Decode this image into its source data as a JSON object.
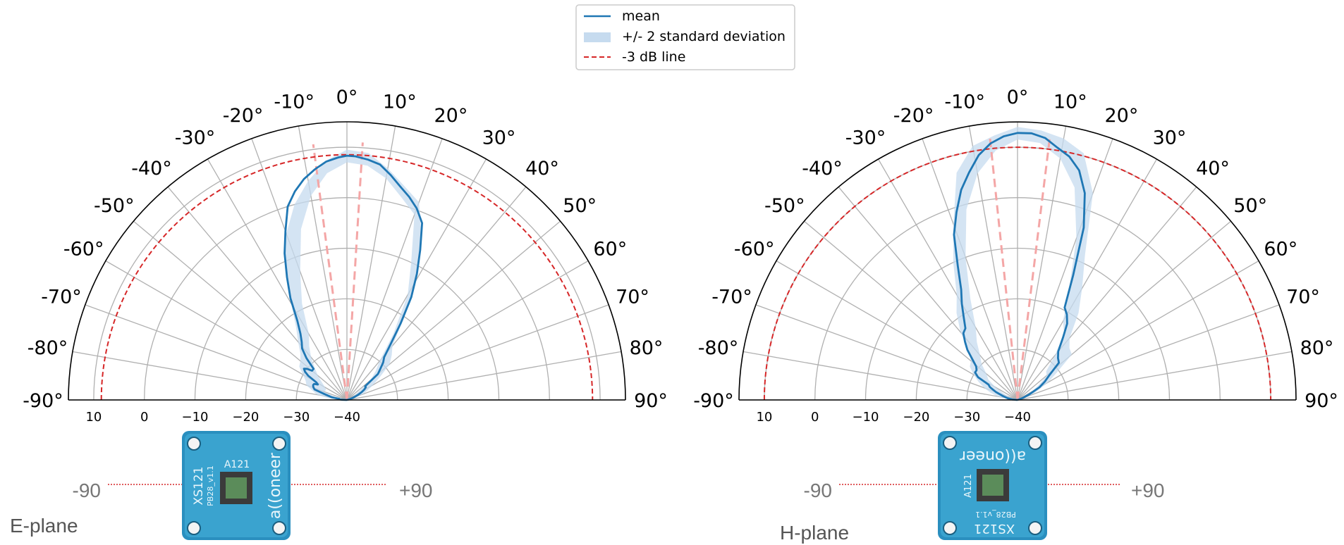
{
  "legend": {
    "items": [
      {
        "label": "mean",
        "kind": "line",
        "color": "#1f77b4"
      },
      {
        "label": "+/- 2 standard deviation",
        "kind": "band",
        "color": "#c6dbef"
      },
      {
        "label": "-3 dB line",
        "kind": "dashed",
        "color": "#d62728"
      }
    ]
  },
  "chart_data": [
    {
      "type": "line",
      "plane_label": "E-plane",
      "angle_range_deg": [
        -90,
        90
      ],
      "angle_ticks_deg": [
        -90,
        -80,
        -70,
        -60,
        -50,
        -40,
        -30,
        -20,
        -10,
        0,
        10,
        20,
        30,
        40,
        50,
        60,
        70,
        80,
        90
      ],
      "angle_tick_labels": [
        "-90°",
        "-80°",
        "-70°",
        "-60°",
        "-50°",
        "-40°",
        "-30°",
        "-20°",
        "-10°",
        "0°",
        "10°",
        "20°",
        "30°",
        "40°",
        "50°",
        "60°",
        "70°",
        "80°",
        "90°"
      ],
      "r_range": [
        -40,
        15
      ],
      "r_ticks": [
        10,
        0,
        -10,
        -20,
        -30,
        -40
      ],
      "r_tick_labels": [
        "10",
        "0",
        "−10",
        "−20",
        "−30",
        "−40"
      ],
      "minus3db_level": 8.5,
      "beam_lines_deg": [
        -7.5,
        3.5
      ],
      "series": [
        {
          "name": "mean",
          "angle": [
            -90,
            -88,
            -85,
            -82,
            -80,
            -75,
            -72,
            -70,
            -68,
            -66,
            -64,
            -62,
            -60,
            -58,
            -56,
            -54,
            -52,
            -50,
            -47,
            -44,
            -41,
            -38,
            -35,
            -32,
            -29,
            -26,
            -23,
            -20,
            -17,
            -14,
            -11,
            -8,
            -5,
            -2,
            0,
            2,
            5,
            8,
            11,
            14,
            17,
            20,
            23,
            26,
            29,
            32,
            35,
            38,
            41,
            44,
            47,
            50,
            53,
            56,
            59,
            62,
            65,
            68,
            71,
            74,
            77,
            80,
            83,
            86,
            90
          ],
          "r": [
            -40,
            -39,
            -38.5,
            -38.5,
            -37,
            -35.3,
            -33.3,
            -33,
            -32.8,
            -32.7,
            -32.8,
            -33.5,
            -33,
            -31,
            -30,
            -29.5,
            -30,
            -31,
            -31,
            -28.5,
            -26.5,
            -25.5,
            -24,
            -21.5,
            -17,
            -13,
            -8.5,
            -4.5,
            0,
            2.5,
            4.5,
            6,
            7.3,
            8,
            8.3,
            8.2,
            7.7,
            7,
            5.3,
            3.5,
            2,
            0.3,
            -2,
            -7,
            -11.5,
            -16,
            -21.5,
            -26,
            -28.8,
            -29.7,
            -31,
            -32,
            -35.5,
            -35.5,
            -36,
            -36.7,
            -37.5,
            -38.3,
            -39,
            -39.5,
            -40,
            -40,
            -40,
            -40,
            -40
          ]
        },
        {
          "name": "+/- 2 standard deviation",
          "angle": [
            -90,
            -85,
            -80,
            -75,
            -70,
            -65,
            -60,
            -55,
            -50,
            -45,
            -40,
            -35,
            -30,
            -25,
            -20,
            -15,
            -10,
            -5,
            0,
            5,
            10,
            15,
            20,
            25,
            30,
            35,
            40,
            45,
            50,
            55,
            60,
            65,
            70,
            75,
            80,
            85,
            90
          ],
          "upper": [
            -40,
            -36.5,
            -34,
            -33,
            -31.5,
            -31,
            -30,
            -28.5,
            -28,
            -27,
            -25,
            -22.5,
            -18,
            -11,
            -5,
            0,
            4,
            7.5,
            9.5,
            9,
            6.5,
            3.8,
            1.6,
            -5,
            -12.5,
            -20.5,
            -26,
            -27.5,
            -29,
            -32,
            -34,
            -35.5,
            -36.5,
            -38.5,
            -40,
            -40,
            -40
          ],
          "lower": [
            -40,
            -40,
            -39,
            -37.5,
            -35,
            -35.5,
            -35,
            -34,
            -32.5,
            -31,
            -29,
            -27,
            -25,
            -19,
            -13,
            -5,
            1,
            5,
            7,
            6.5,
            4.5,
            1.5,
            -1,
            -10,
            -16,
            -24,
            -30,
            -32,
            -34,
            -37.5,
            -38.5,
            -39,
            -40,
            -40,
            -40,
            -40,
            -40
          ]
        }
      ]
    },
    {
      "type": "line",
      "plane_label": "H-plane",
      "angle_range_deg": [
        -90,
        90
      ],
      "angle_ticks_deg": [
        -90,
        -80,
        -70,
        -60,
        -50,
        -40,
        -30,
        -20,
        -10,
        0,
        10,
        20,
        30,
        40,
        50,
        60,
        70,
        80,
        90
      ],
      "angle_tick_labels": [
        "-90°",
        "-80°",
        "-70°",
        "-60°",
        "-50°",
        "-40°",
        "-30°",
        "-20°",
        "-10°",
        "0°",
        "10°",
        "20°",
        "30°",
        "40°",
        "50°",
        "60°",
        "70°",
        "80°",
        "90°"
      ],
      "r_range": [
        -40,
        15
      ],
      "r_ticks": [
        10,
        0,
        -10,
        -20,
        -30,
        -40
      ],
      "r_tick_labels": [
        "10",
        "0",
        "−10",
        "−20",
        "−30",
        "−40"
      ],
      "minus3db_level": 10,
      "beam_lines_deg": [
        -6,
        7
      ],
      "series": [
        {
          "name": "mean",
          "angle": [
            -90,
            -85,
            -80,
            -75,
            -70,
            -65,
            -62,
            -60,
            -57,
            -54,
            -51,
            -48,
            -45,
            -42,
            -39,
            -36,
            -33,
            -30,
            -27,
            -24,
            -21,
            -18,
            -15,
            -12,
            -9,
            -6,
            -3,
            0,
            3,
            6,
            9,
            12,
            15,
            18,
            21,
            24,
            27,
            30,
            33,
            36,
            40,
            44,
            48,
            52,
            56,
            60,
            65,
            70,
            75,
            80,
            85,
            90
          ],
          "r": [
            -40,
            -39,
            -38,
            -37,
            -35.5,
            -34,
            -33.5,
            -31,
            -30,
            -30,
            -29.5,
            -28,
            -26,
            -24.5,
            -23,
            -22.5,
            -20.5,
            -18,
            -15.5,
            -11,
            -5,
            -1,
            3,
            6,
            9,
            11,
            12.2,
            12.8,
            12.8,
            12.1,
            10.5,
            9.2,
            7,
            3,
            -3.5,
            -13,
            -19.5,
            -20.5,
            -22,
            -24.7,
            -27.5,
            -28.5,
            -29,
            -32,
            -33.5,
            -35,
            -37.5,
            -39,
            -40,
            -40,
            -40,
            -40
          ]
        },
        {
          "name": "+/- 2 standard deviation",
          "angle": [
            -90,
            -85,
            -80,
            -75,
            -70,
            -65,
            -60,
            -55,
            -50,
            -45,
            -40,
            -35,
            -30,
            -25,
            -20,
            -15,
            -10,
            -5,
            0,
            5,
            10,
            15,
            20,
            25,
            30,
            35,
            40,
            45,
            50,
            55,
            60,
            65,
            70,
            75,
            80,
            85,
            90
          ],
          "upper": [
            -40,
            -38,
            -36,
            -34.5,
            -33,
            -31.5,
            -30,
            -28.5,
            -28,
            -26.5,
            -22.5,
            -19,
            -16,
            -10,
            -3,
            6.5,
            11,
            12.5,
            14,
            13.5,
            12.5,
            10.5,
            3.5,
            -8.5,
            -14.5,
            -19,
            -24,
            -25.5,
            -26,
            -30.5,
            -33,
            -35.5,
            -37,
            -39,
            -40,
            -40,
            -40
          ],
          "lower": [
            -40,
            -40,
            -40,
            -39,
            -38,
            -37,
            -35,
            -33,
            -32,
            -30,
            -28.5,
            -26,
            -23.5,
            -18,
            -10,
            -1,
            5.5,
            9.5,
            11.5,
            11,
            8.5,
            3.5,
            -6,
            -16,
            -22,
            -24,
            -28.5,
            -32,
            -32.5,
            -35,
            -37,
            -38.5,
            -40,
            -40,
            -40,
            -40,
            -40
          ]
        }
      ]
    }
  ],
  "figures": [
    {
      "left_label": "-90",
      "right_label": "+90",
      "plane_label": "E-plane",
      "board": {
        "name": "XS121",
        "version": "PB28_v1.1",
        "chip": "A121",
        "brand": "a((oneer",
        "orientation": "vertical"
      }
    },
    {
      "left_label": "-90",
      "right_label": "+90",
      "plane_label": "H-plane",
      "board": {
        "name": "XS121",
        "version": "PB28_v1.1",
        "chip": "A121",
        "brand": "a((oneer",
        "orientation": "horizontal"
      }
    }
  ]
}
